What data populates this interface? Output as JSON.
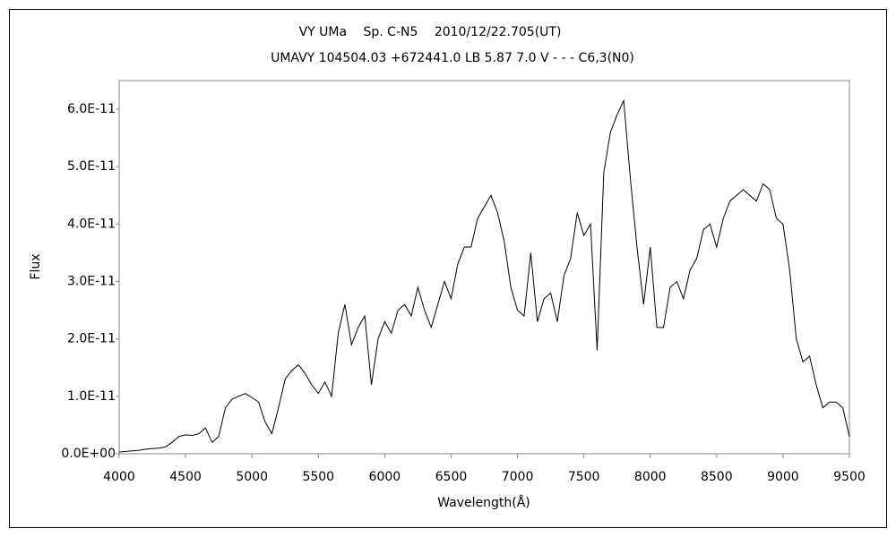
{
  "chart_data": {
    "type": "line",
    "title": "VY UMa　 Sp. C-N5　 2010/12/22.705(UT)",
    "subtitle": "UMAVY 104504.03 +672441.0 LB 5.87 7.0 V - - - C6,3(N0)",
    "x_label": "Wavelength(Å)",
    "y_label": "Flux",
    "xlim": [
      4000,
      9500
    ],
    "xticks": [
      4000,
      4500,
      5000,
      5500,
      6000,
      6500,
      7000,
      7500,
      8000,
      8500,
      9000,
      9500
    ],
    "ylim": [
      0,
      6.5e-11
    ],
    "yticks": [
      {
        "value": 0,
        "label": "0.0E+00"
      },
      {
        "value": 1e-11,
        "label": "1.0E-11"
      },
      {
        "value": 2e-11,
        "label": "2.0E-11"
      },
      {
        "value": 3e-11,
        "label": "3.0E-11"
      },
      {
        "value": 4e-11,
        "label": "4.0E-11"
      },
      {
        "value": 5e-11,
        "label": "5.0E-11"
      },
      {
        "value": 6e-11,
        "label": "6.0E-11"
      }
    ],
    "grid": false,
    "x": [
      4000,
      4050,
      4100,
      4150,
      4200,
      4250,
      4300,
      4350,
      4400,
      4450,
      4500,
      4550,
      4600,
      4650,
      4700,
      4750,
      4800,
      4850,
      4900,
      4950,
      5000,
      5050,
      5100,
      5150,
      5200,
      5250,
      5300,
      5350,
      5400,
      5450,
      5500,
      5550,
      5600,
      5650,
      5700,
      5750,
      5800,
      5850,
      5900,
      5950,
      6000,
      6050,
      6100,
      6150,
      6200,
      6250,
      6300,
      6350,
      6400,
      6450,
      6500,
      6550,
      6600,
      6650,
      6700,
      6750,
      6800,
      6850,
      6900,
      6950,
      7000,
      7050,
      7100,
      7150,
      7200,
      7250,
      7300,
      7350,
      7400,
      7450,
      7500,
      7550,
      7600,
      7650,
      7700,
      7750,
      7800,
      7850,
      7900,
      7950,
      8000,
      8050,
      8100,
      8150,
      8200,
      8250,
      8300,
      8350,
      8400,
      8450,
      8500,
      8550,
      8600,
      8650,
      8700,
      8750,
      8800,
      8850,
      8900,
      8950,
      9000,
      9050,
      9100,
      9150,
      9200,
      9250,
      9300,
      9350,
      9400,
      9450,
      9500
    ],
    "series": [
      {
        "color": "#000000",
        "values": [
          3e-13,
          4e-13,
          5e-13,
          6e-13,
          8e-13,
          9e-13,
          1e-12,
          1.2e-12,
          2e-12,
          3e-12,
          3.3e-12,
          3.2e-12,
          3.5e-12,
          4.5e-12,
          2e-12,
          3e-12,
          8e-12,
          9.5e-12,
          1e-11,
          1.05e-11,
          9.8e-12,
          9e-12,
          5.5e-12,
          3.5e-12,
          8e-12,
          1.3e-11,
          1.45e-11,
          1.55e-11,
          1.4e-11,
          1.2e-11,
          1.05e-11,
          1.25e-11,
          1e-11,
          2.1e-11,
          2.6e-11,
          1.9e-11,
          2.2e-11,
          2.4e-11,
          1.2e-11,
          2e-11,
          2.3e-11,
          2.1e-11,
          2.5e-11,
          2.6e-11,
          2.4e-11,
          2.9e-11,
          2.5e-11,
          2.2e-11,
          2.6e-11,
          3e-11,
          2.7e-11,
          3.3e-11,
          3.6e-11,
          3.6e-11,
          4.1e-11,
          4.3e-11,
          4.5e-11,
          4.2e-11,
          3.7e-11,
          2.9e-11,
          2.5e-11,
          2.4e-11,
          3.5e-11,
          2.3e-11,
          2.7e-11,
          2.8e-11,
          2.3e-11,
          3.1e-11,
          3.4e-11,
          4.2e-11,
          3.8e-11,
          4e-11,
          1.8e-11,
          4.9e-11,
          5.6e-11,
          5.9e-11,
          6.15e-11,
          4.8e-11,
          3.6e-11,
          2.6e-11,
          3.6e-11,
          2.2e-11,
          2.2e-11,
          2.9e-11,
          3e-11,
          2.7e-11,
          3.2e-11,
          3.4e-11,
          3.9e-11,
          4e-11,
          3.6e-11,
          4.1e-11,
          4.4e-11,
          4.5e-11,
          4.6e-11,
          4.5e-11,
          4.4e-11,
          4.7e-11,
          4.6e-11,
          4.1e-11,
          4e-11,
          3.2e-11,
          2e-11,
          1.6e-11,
          1.7e-11,
          1.2e-11,
          8e-12,
          9e-12,
          9e-12,
          8e-12,
          3e-12
        ]
      }
    ]
  }
}
